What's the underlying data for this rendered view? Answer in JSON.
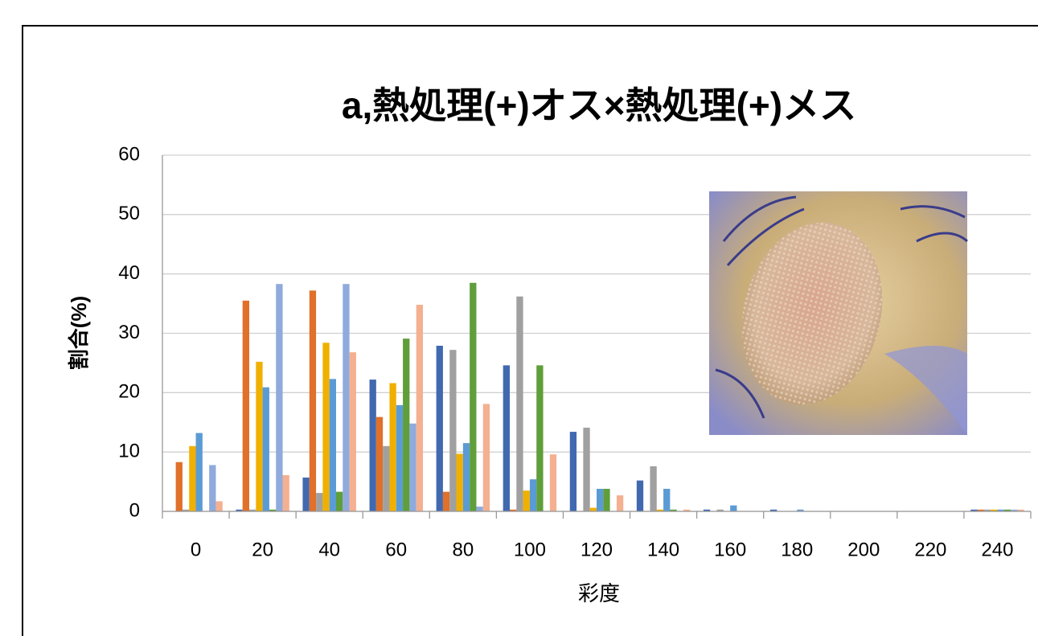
{
  "chart_data": {
    "type": "bar",
    "title": "a,熱処理(+)オス×熱処理(+)メス",
    "x_label": "彩度",
    "y_label": "割合(%)",
    "categories": [
      "0",
      "20",
      "40",
      "60",
      "80",
      "100",
      "120",
      "140",
      "160",
      "180",
      "200",
      "220",
      "240"
    ],
    "series": [
      {
        "color": "#4169b0",
        "values": [
          0,
          0.3,
          5.7,
          22.2,
          27.9,
          24.6,
          13.4,
          5.2,
          0.3,
          0.3,
          0,
          0,
          0.3
        ]
      },
      {
        "color": "#e0702a",
        "values": [
          8.3,
          35.5,
          37.2,
          15.9,
          3.3,
          0.3,
          0,
          0,
          0,
          0,
          0,
          0,
          0.3
        ]
      },
      {
        "color": "#a0a0a0",
        "values": [
          0.3,
          0.3,
          3.1,
          11,
          27.2,
          36.2,
          14.1,
          7.6,
          0.3,
          0,
          0,
          0,
          0.3
        ]
      },
      {
        "color": "#f0b000",
        "values": [
          11,
          25.2,
          28.4,
          21.6,
          9.7,
          3.5,
          0.6,
          0.3,
          0,
          0,
          0,
          0,
          0.3
        ]
      },
      {
        "color": "#5b9bd5",
        "values": [
          13.2,
          20.9,
          22.3,
          17.9,
          11.5,
          5.4,
          3.8,
          3.8,
          1,
          0.3,
          0,
          0,
          0.3
        ]
      },
      {
        "color": "#5f9e3a",
        "values": [
          0,
          0.3,
          3.3,
          29.1,
          38.5,
          24.6,
          3.8,
          0.3,
          0,
          0,
          0,
          0,
          0.3
        ]
      },
      {
        "color": "#8faadc",
        "values": [
          7.8,
          38.3,
          38.3,
          14.8,
          0.8,
          0,
          0,
          0,
          0,
          0,
          0,
          0,
          0.3
        ]
      },
      {
        "color": "#f4b090",
        "values": [
          1.7,
          6.1,
          26.8,
          34.8,
          18.1,
          9.6,
          2.7,
          0.3,
          0,
          0,
          0,
          0,
          0.3
        ]
      }
    ],
    "ylim": [
      0,
      60
    ],
    "yticks": [
      0,
      10,
      20,
      30,
      40,
      50,
      60
    ],
    "grid": true
  }
}
